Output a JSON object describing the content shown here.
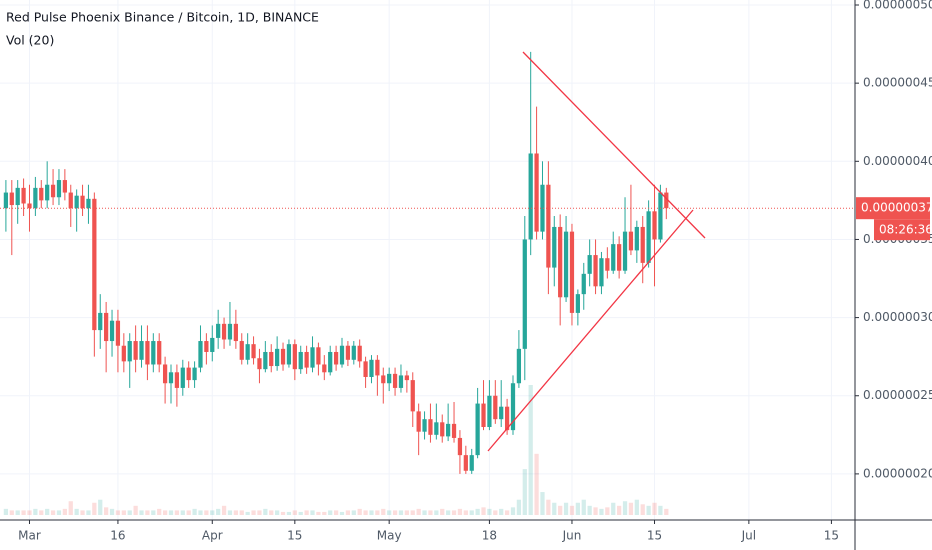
{
  "chart_data": {
    "type": "candlestick",
    "title": "Red Pulse Phoenix Binance / Bitcoin, 1D, BINANCE",
    "volume_title": "Vol (20)",
    "price_label": "0.00000037",
    "countdown": "08:26:36",
    "up_color": "#26a69a",
    "down_color": "#ef5350",
    "grid": true,
    "xlim": [
      "02-24",
      "07-19"
    ],
    "xticks": [
      {
        "value": "03-01",
        "label": "Mar"
      },
      {
        "value": "03-16",
        "label": "16"
      },
      {
        "value": "04-01",
        "label": "Apr"
      },
      {
        "value": "04-15",
        "label": "15"
      },
      {
        "value": "05-01",
        "label": "May"
      },
      {
        "value": "05-18",
        "label": "18"
      },
      {
        "value": "06-01",
        "label": "Jun"
      },
      {
        "value": "06-15",
        "label": "15"
      },
      {
        "value": "07-01",
        "label": "Jul"
      },
      {
        "value": "07-15",
        "label": "15"
      }
    ],
    "ylim": [
      1.705e-07,
      5.032e-07
    ],
    "yticks": [
      {
        "value": 2e-07,
        "label": "0.00000020"
      },
      {
        "value": 2.5e-07,
        "label": "0.00000025"
      },
      {
        "value": 3e-07,
        "label": "0.00000030"
      },
      {
        "value": 3.5e-07,
        "label": "0.00000035"
      },
      {
        "value": 4e-07,
        "label": "0.00000040"
      },
      {
        "value": 4.5e-07,
        "label": "0.00000045"
      },
      {
        "value": 5e-07,
        "label": "0.00000050"
      }
    ],
    "x": [
      "02-25",
      "02-26",
      "02-27",
      "02-28",
      "03-01",
      "03-02",
      "03-03",
      "03-04",
      "03-05",
      "03-06",
      "03-07",
      "03-08",
      "03-09",
      "03-10",
      "03-11",
      "03-12",
      "03-13",
      "03-14",
      "03-15",
      "03-16",
      "03-17",
      "03-18",
      "03-19",
      "03-20",
      "03-21",
      "03-22",
      "03-23",
      "03-24",
      "03-25",
      "03-26",
      "03-27",
      "03-28",
      "03-29",
      "03-30",
      "03-31",
      "04-01",
      "04-02",
      "04-03",
      "04-04",
      "04-05",
      "04-06",
      "04-07",
      "04-08",
      "04-09",
      "04-10",
      "04-11",
      "04-12",
      "04-13",
      "04-14",
      "04-15",
      "04-16",
      "04-17",
      "04-18",
      "04-19",
      "04-20",
      "04-21",
      "04-22",
      "04-23",
      "04-24",
      "04-25",
      "04-26",
      "04-27",
      "04-28",
      "04-29",
      "04-30",
      "05-01",
      "05-02",
      "05-03",
      "05-04",
      "05-05",
      "05-06",
      "05-07",
      "05-08",
      "05-09",
      "05-10",
      "05-11",
      "05-12",
      "05-13",
      "05-14",
      "05-15",
      "05-16",
      "05-17",
      "05-18",
      "05-19",
      "05-20",
      "05-21",
      "05-22",
      "05-23",
      "05-24",
      "05-25",
      "05-26",
      "05-27",
      "05-28",
      "05-29",
      "05-30",
      "05-31",
      "06-01",
      "06-02",
      "06-03",
      "06-04",
      "06-05",
      "06-06",
      "06-07",
      "06-08",
      "06-09",
      "06-10",
      "06-11",
      "06-12",
      "06-13",
      "06-14",
      "06-15",
      "06-16",
      "06-17"
    ],
    "open": [
      3.7e-07,
      3.8e-07,
      3.72e-07,
      3.83e-07,
      3.73e-07,
      3.7e-07,
      3.83e-07,
      3.75e-07,
      3.85e-07,
      3.77e-07,
      3.88e-07,
      3.8e-07,
      3.7e-07,
      3.78e-07,
      3.7e-07,
      3.76e-07,
      2.92e-07,
      3.03e-07,
      2.85e-07,
      2.98e-07,
      2.82e-07,
      2.72e-07,
      2.85e-07,
      2.73e-07,
      2.85e-07,
      2.7e-07,
      2.85e-07,
      2.7e-07,
      2.58e-07,
      2.65e-07,
      2.55e-07,
      2.68e-07,
      2.6e-07,
      2.68e-07,
      2.85e-07,
      2.78e-07,
      2.87e-07,
      2.96e-07,
      2.86e-07,
      2.96e-07,
      2.85e-07,
      2.73e-07,
      2.83e-07,
      2.74e-07,
      2.67e-07,
      2.78e-07,
      2.69e-07,
      2.8e-07,
      2.7e-07,
      2.83e-07,
      2.67e-07,
      2.78e-07,
      2.68e-07,
      2.81e-07,
      2.7e-07,
      2.65e-07,
      2.78e-07,
      2.7e-07,
      2.82e-07,
      2.73e-07,
      2.82e-07,
      2.72e-07,
      2.62e-07,
      2.73e-07,
      2.63e-07,
      2.58e-07,
      2.64e-07,
      2.55e-07,
      2.63e-07,
      2.6e-07,
      2.4e-07,
      2.27e-07,
      2.35e-07,
      2.25e-07,
      2.33e-07,
      2.24e-07,
      2.32e-07,
      2.23e-07,
      2.12e-07,
      2.02e-07,
      2.12e-07,
      2.45e-07,
      2.3e-07,
      2.5e-07,
      2.35e-07,
      2.43e-07,
      2.28e-07,
      2.58e-07,
      2.8e-07,
      3.5e-07,
      4.05e-07,
      3.55e-07,
      3.85e-07,
      3.32e-07,
      3.58e-07,
      3.13e-07,
      3.55e-07,
      3.03e-07,
      3.15e-07,
      3.28e-07,
      3.4e-07,
      3.2e-07,
      3.38e-07,
      3.3e-07,
      3.47e-07,
      3.3e-07,
      3.55e-07,
      3.43e-07,
      3.58e-07,
      3.35e-07,
      3.68e-07,
      3.5e-07,
      3.8e-07
    ],
    "high": [
      3.88e-07,
      3.88e-07,
      3.88e-07,
      3.89e-07,
      3.85e-07,
      3.9e-07,
      3.88e-07,
      4e-07,
      3.95e-07,
      3.95e-07,
      3.95e-07,
      3.85e-07,
      3.82e-07,
      3.85e-07,
      3.85e-07,
      3.8e-07,
      3.15e-07,
      3.1e-07,
      3.05e-07,
      3.05e-07,
      2.9e-07,
      2.9e-07,
      2.95e-07,
      2.95e-07,
      2.95e-07,
      2.9e-07,
      2.9e-07,
      2.75e-07,
      2.7e-07,
      2.7e-07,
      2.73e-07,
      2.72e-07,
      2.72e-07,
      2.95e-07,
      2.9e-07,
      2.95e-07,
      3.05e-07,
      3e-07,
      3.1e-07,
      3.05e-07,
      2.9e-07,
      2.9e-07,
      2.88e-07,
      2.8e-07,
      2.85e-07,
      2.83e-07,
      2.88e-07,
      2.84e-07,
      2.86e-07,
      2.86e-07,
      2.82e-07,
      2.82e-07,
      2.88e-07,
      2.84e-07,
      2.76e-07,
      2.82e-07,
      2.82e-07,
      2.87e-07,
      2.85e-07,
      2.85e-07,
      2.86e-07,
      2.75e-07,
      2.76e-07,
      2.76e-07,
      2.68e-07,
      2.68e-07,
      2.68e-07,
      2.7e-07,
      2.66e-07,
      2.65e-07,
      2.45e-07,
      2.4e-07,
      2.45e-07,
      2.45e-07,
      2.38e-07,
      2.45e-07,
      2.46e-07,
      2.28e-07,
      2.18e-07,
      2.16e-07,
      2.55e-07,
      2.6e-07,
      2.6e-07,
      2.6e-07,
      2.6e-07,
      2.48e-07,
      2.63e-07,
      2.92e-07,
      3.65e-07,
      4.7e-07,
      4.35e-07,
      4e-07,
      4e-07,
      3.65e-07,
      3.66e-07,
      3.65e-07,
      3.6e-07,
      3.18e-07,
      3.35e-07,
      3.5e-07,
      3.5e-07,
      3.42e-07,
      3.45e-07,
      3.55e-07,
      3.52e-07,
      3.77e-07,
      3.85e-07,
      3.62e-07,
      3.65e-07,
      3.75e-07,
      3.85e-07,
      3.85e-07,
      3.83e-07
    ],
    "low": [
      3.55e-07,
      3.4e-07,
      3.6e-07,
      3.65e-07,
      3.55e-07,
      3.65e-07,
      3.7e-07,
      3.7e-07,
      3.72e-07,
      3.72e-07,
      3.75e-07,
      3.58e-07,
      3.55e-07,
      3.65e-07,
      3.6e-07,
      2.75e-07,
      2.8e-07,
      2.65e-07,
      2.75e-07,
      2.65e-07,
      2.65e-07,
      2.55e-07,
      2.65e-07,
      2.68e-07,
      2.6e-07,
      2.65e-07,
      2.65e-07,
      2.45e-07,
      2.45e-07,
      2.43e-07,
      2.5e-07,
      2.55e-07,
      2.55e-07,
      2.65e-07,
      2.7e-07,
      2.72e-07,
      2.8e-07,
      2.8e-07,
      2.82e-07,
      2.8e-07,
      2.7e-07,
      2.7e-07,
      2.7e-07,
      2.58e-07,
      2.65e-07,
      2.65e-07,
      2.66e-07,
      2.66e-07,
      2.68e-07,
      2.6e-07,
      2.64e-07,
      2.64e-07,
      2.65e-07,
      2.63e-07,
      2.6e-07,
      2.63e-07,
      2.66e-07,
      2.68e-07,
      2.69e-07,
      2.7e-07,
      2.68e-07,
      2.55e-07,
      2.58e-07,
      2.5e-07,
      2.45e-07,
      2.53e-07,
      2.5e-07,
      2.52e-07,
      2.52e-07,
      2.3e-07,
      2.12e-07,
      2.22e-07,
      2.2e-07,
      2.22e-07,
      2.2e-07,
      2.21e-07,
      2.2e-07,
      2e-07,
      2e-07,
      2e-07,
      2.1e-07,
      2.28e-07,
      2.28e-07,
      2.32e-07,
      2.3e-07,
      2.25e-07,
      2.25e-07,
      2.55e-07,
      2.6e-07,
      3.4e-07,
      3.5e-07,
      3.5e-07,
      3.15e-07,
      3.2e-07,
      2.95e-07,
      3.1e-07,
      2.95e-07,
      2.95e-07,
      3.05e-07,
      3.2e-07,
      3.15e-07,
      3.15e-07,
      3.25e-07,
      3.28e-07,
      3.25e-07,
      3.28e-07,
      3.4e-07,
      3.35e-07,
      3.22e-07,
      3.32e-07,
      3.2e-07,
      3.48e-07,
      3.63e-07
    ],
    "close": [
      3.8e-07,
      3.72e-07,
      3.83e-07,
      3.73e-07,
      3.7e-07,
      3.83e-07,
      3.75e-07,
      3.85e-07,
      3.77e-07,
      3.88e-07,
      3.8e-07,
      3.7e-07,
      3.78e-07,
      3.7e-07,
      3.76e-07,
      2.92e-07,
      3.03e-07,
      2.85e-07,
      2.98e-07,
      2.82e-07,
      2.72e-07,
      2.85e-07,
      2.73e-07,
      2.85e-07,
      2.7e-07,
      2.85e-07,
      2.7e-07,
      2.58e-07,
      2.65e-07,
      2.55e-07,
      2.68e-07,
      2.6e-07,
      2.68e-07,
      2.85e-07,
      2.78e-07,
      2.87e-07,
      2.96e-07,
      2.86e-07,
      2.96e-07,
      2.85e-07,
      2.73e-07,
      2.83e-07,
      2.74e-07,
      2.67e-07,
      2.78e-07,
      2.69e-07,
      2.8e-07,
      2.7e-07,
      2.83e-07,
      2.67e-07,
      2.78e-07,
      2.68e-07,
      2.81e-07,
      2.7e-07,
      2.65e-07,
      2.78e-07,
      2.7e-07,
      2.82e-07,
      2.73e-07,
      2.82e-07,
      2.72e-07,
      2.62e-07,
      2.73e-07,
      2.63e-07,
      2.58e-07,
      2.64e-07,
      2.55e-07,
      2.63e-07,
      2.6e-07,
      2.4e-07,
      2.27e-07,
      2.35e-07,
      2.25e-07,
      2.33e-07,
      2.24e-07,
      2.32e-07,
      2.23e-07,
      2.12e-07,
      2.02e-07,
      2.12e-07,
      2.45e-07,
      2.3e-07,
      2.5e-07,
      2.35e-07,
      2.43e-07,
      2.28e-07,
      2.58e-07,
      2.8e-07,
      3.5e-07,
      4.05e-07,
      3.55e-07,
      3.85e-07,
      3.32e-07,
      3.58e-07,
      3.13e-07,
      3.55e-07,
      3.03e-07,
      3.15e-07,
      3.28e-07,
      3.4e-07,
      3.2e-07,
      3.38e-07,
      3.3e-07,
      3.47e-07,
      3.3e-07,
      3.55e-07,
      3.43e-07,
      3.58e-07,
      3.35e-07,
      3.68e-07,
      3.5e-07,
      3.8e-07,
      3.7e-07
    ],
    "volume": [
      4,
      3,
      3,
      3,
      3,
      4,
      3,
      4,
      3,
      3,
      4,
      9,
      4,
      3,
      3,
      8,
      10,
      5,
      4,
      3,
      3,
      3,
      6,
      3,
      3,
      3,
      4,
      3,
      3,
      3,
      3,
      3,
      4,
      3,
      3,
      3,
      4,
      6,
      3,
      3,
      3,
      2,
      3,
      3,
      4,
      3,
      3,
      2,
      2,
      3,
      2,
      3,
      3,
      2,
      2,
      3,
      3,
      2,
      3,
      3,
      4,
      3,
      3,
      3,
      4,
      3,
      3,
      3,
      3,
      3,
      4,
      3,
      3,
      3,
      4,
      3,
      3,
      4,
      3,
      3,
      4,
      5,
      4,
      3,
      4,
      3,
      5,
      10,
      30,
      85,
      40,
      15,
      10,
      8,
      6,
      8,
      6,
      8,
      10,
      6,
      5,
      4,
      5,
      8,
      6,
      9,
      8,
      10,
      7,
      6,
      8,
      6,
      4
    ]
  }
}
